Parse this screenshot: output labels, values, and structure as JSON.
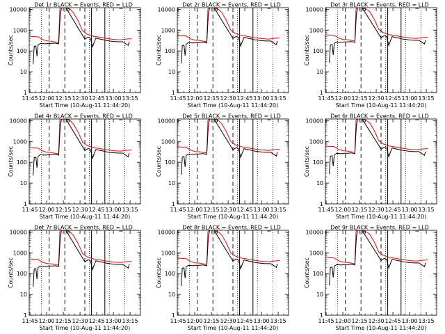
{
  "chart_data": [
    {
      "type": "line",
      "title": "Det 1r BLACK = Events, RED = LLD"
    },
    {
      "type": "line",
      "title": "Det 2r BLACK = Events, RED = LLD"
    },
    {
      "type": "line",
      "title": "Det 3r BLACK = Events, RED = LLD"
    },
    {
      "type": "line",
      "title": "Det 4r BLACK = Events, RED = LLD"
    },
    {
      "type": "line",
      "title": "Det 5r BLACK = Events, RED = LLD"
    },
    {
      "type": "line",
      "title": "Det 6r BLACK = Events, RED = LLD"
    },
    {
      "type": "line",
      "title": "Det 7r BLACK = Events, RED = LLD"
    },
    {
      "type": "line",
      "title": "Det 8r BLACK = Events, RED = LLD"
    },
    {
      "type": "line",
      "title": "Det 9r BLACK = Events, RED = LLD"
    }
  ],
  "common": {
    "ylabel": "Counts/sec",
    "xlabel": "Start Time (10-Aug-11 11:44:20)",
    "x_ticks": [
      "11:45",
      "12:00",
      "12:15",
      "12:30",
      "12:45",
      "13:00",
      "13:15"
    ],
    "x_tick_minutes": [
      0.67,
      15.67,
      30.67,
      45.67,
      60.67,
      75.67,
      90.67
    ],
    "xlim_minutes": [
      0,
      100
    ],
    "y_ticks": [
      "1",
      "10",
      "100",
      "1000",
      "10000"
    ],
    "ylim": [
      1,
      12000
    ],
    "y_scale": "log",
    "colors": {
      "events": "#000000",
      "lld": "#ff0000"
    },
    "series_shape": {
      "lld": [
        [
          0,
          550
        ],
        [
          8,
          520
        ],
        [
          12,
          380
        ],
        [
          16,
          330
        ],
        [
          20,
          320
        ],
        [
          25,
          280
        ],
        [
          26.5,
          280
        ],
        [
          27.5,
          10000
        ],
        [
          28,
          12000
        ],
        [
          33,
          12000
        ],
        [
          37,
          10000
        ],
        [
          40,
          7000
        ],
        [
          44,
          3000
        ],
        [
          48,
          1000
        ],
        [
          52,
          700
        ],
        [
          57,
          560
        ],
        [
          63,
          500
        ],
        [
          70,
          430
        ],
        [
          76,
          390
        ],
        [
          82,
          370
        ],
        [
          86,
          400
        ],
        [
          92,
          420
        ]
      ],
      "events": [
        [
          3.5,
          25
        ],
        [
          4.5,
          180
        ],
        [
          6,
          190
        ],
        [
          7,
          60
        ],
        [
          8,
          210
        ],
        [
          10,
          250
        ],
        [
          13,
          240
        ],
        [
          15,
          240
        ],
        [
          17,
          250
        ],
        [
          20,
          250
        ],
        [
          23,
          260
        ],
        [
          26.5,
          240
        ],
        [
          27.5,
          2500
        ],
        [
          28,
          6000
        ],
        [
          29,
          12000
        ],
        [
          33,
          12000
        ],
        [
          50,
          400
        ],
        [
          53,
          500
        ],
        [
          55,
          450
        ],
        [
          57,
          170
        ],
        [
          58,
          250
        ],
        [
          60,
          450
        ],
        [
          62,
          420
        ],
        [
          66,
          380
        ],
        [
          70,
          340
        ],
        [
          76,
          310
        ],
        [
          80,
          300
        ],
        [
          84,
          300
        ],
        [
          89,
          200
        ],
        [
          90,
          300
        ]
      ],
      "flat_top": [
        [
          32,
          48,
          12000
        ]
      ]
    },
    "dotted_lines_minutes": [
      11,
      54,
      72,
      86
    ],
    "dashed_lines_minutes": [
      18,
      32,
      50
    ],
    "solid_lines_minutes": [
      56,
      68
    ]
  }
}
